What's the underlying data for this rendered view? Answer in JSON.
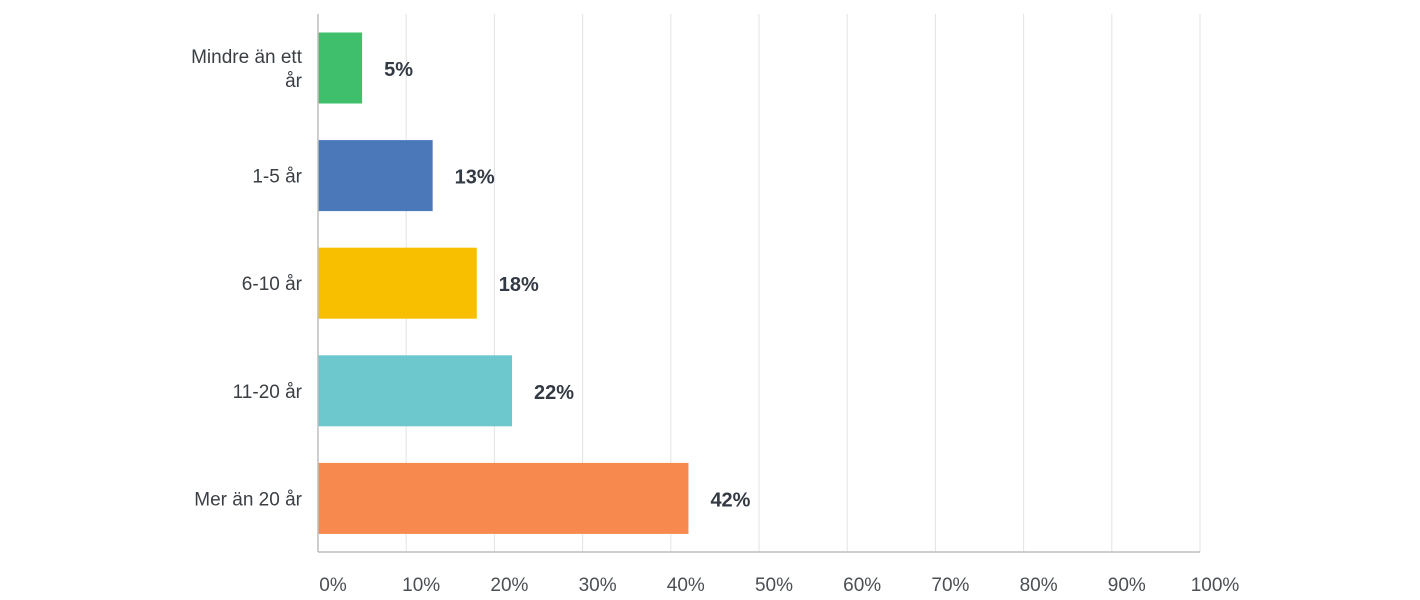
{
  "chart_data": {
    "type": "bar",
    "orientation": "horizontal",
    "categories": [
      [
        "Mindre än ett",
        "år"
      ],
      [
        "1-5 år"
      ],
      [
        "6-10 år"
      ],
      [
        "11-20 år"
      ],
      [
        "Mer än 20 år"
      ]
    ],
    "values": [
      5,
      13,
      18,
      22,
      42
    ],
    "data_labels": [
      "5%",
      "13%",
      "18%",
      "22%",
      "42%"
    ],
    "colors": [
      "#3fbf6b",
      "#4a78b8",
      "#f7bf00",
      "#6cc8cc",
      "#f7894e"
    ],
    "xlim": [
      0,
      100
    ],
    "xticks": [
      0,
      10,
      20,
      30,
      40,
      50,
      60,
      70,
      80,
      90,
      100
    ],
    "xtick_labels": [
      "0%",
      "10%",
      "20%",
      "30%",
      "40%",
      "50%",
      "60%",
      "70%",
      "80%",
      "90%",
      "100%"
    ],
    "grid": true,
    "title": "",
    "xlabel": "",
    "ylabel": ""
  }
}
